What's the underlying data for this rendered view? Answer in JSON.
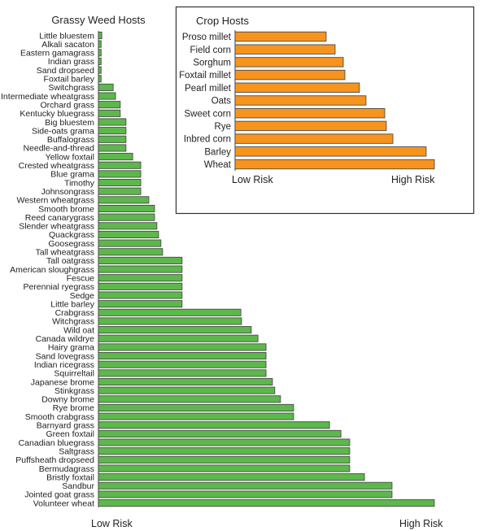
{
  "chart_data": [
    {
      "type": "bar",
      "orientation": "horizontal",
      "title": "Grassy Weed Hosts",
      "xlabel_low": "Low Risk",
      "xlabel_high": "High Risk",
      "xlim": [
        0,
        100
      ],
      "units": "relative risk (0 = lowest, 100 = highest, estimated from bar lengths)",
      "color": "#5cb84a",
      "categories": [
        "Little bluestem",
        "Alkali sacaton",
        "Eastern gamagrass",
        "Indian grass",
        "Sand dropseed",
        "Foxtail barley",
        "Switchgrass",
        "Intermediate wheatgrass",
        "Orchard grass",
        "Kentucky bluegrass",
        "Big bluestem",
        "Side-oats grama",
        "Buffalograss",
        "Needle-and-thread",
        "Yellow foxtail",
        "Crested wheatgrass",
        "Blue grama",
        "Timothy",
        "Johnsongrass",
        "Western wheatgrass",
        "Smooth brome",
        "Reed canarygrass",
        "Slender wheatgrass",
        "Quackgrass",
        "Goosegrass",
        "Tall wheatgrass",
        "Tall oatgrass",
        "American sloughgrass",
        "Fescue",
        "Perennial ryegrass",
        "Sedge",
        "Little barley",
        "Crabgrass",
        "Witchgrass",
        "Wild oat",
        "Canada wildrye",
        "Hairy grama",
        "Sand lovegrass",
        "Indian ricegrass",
        "Squirreltail",
        "Japanese brome",
        "Stinkgrass",
        "Downy brome",
        "Rye brome",
        "Smooth crabgrass",
        "Barnyard grass",
        "Green foxtail",
        "Canadian bluegrass",
        "Saltgrass",
        "Puffsheath dropseed",
        "Bermudagrass",
        "Bristly foxtail",
        "Sandbur",
        "Jointed goat grass",
        "Volunteer wheat"
      ],
      "values": [
        1,
        0.8,
        0.8,
        0.8,
        0.8,
        0.8,
        4.4,
        5.1,
        6.5,
        6.5,
        8.2,
        8.2,
        8.2,
        8.2,
        10.2,
        12.6,
        12.6,
        12.6,
        12.6,
        15.0,
        16.7,
        16.7,
        17.4,
        17.9,
        18.6,
        19.1,
        24.9,
        24.9,
        24.9,
        24.9,
        24.9,
        24.9,
        42.4,
        42.6,
        45.5,
        47.5,
        49.9,
        49.9,
        49.9,
        49.9,
        51.8,
        52.5,
        54.2,
        58.1,
        58.1,
        68.8,
        72.2,
        74.8,
        74.8,
        74.8,
        74.8,
        79.2,
        87.4,
        87.4,
        100
      ]
    },
    {
      "type": "bar",
      "orientation": "horizontal",
      "title": "Crop Hosts",
      "xlabel_low": "Low Risk",
      "xlabel_high": "High Risk",
      "xlim": [
        0,
        100
      ],
      "units": "relative risk (estimated from bar lengths)",
      "color": "#f7941d",
      "categories": [
        "Proso millet",
        "Field corn",
        "Sorghum",
        "Foxtail millet",
        "Pearl millet",
        "Oats",
        "Sweet corn",
        "Rye",
        "Inbred corn",
        "Barley",
        "Wheat"
      ],
      "values": [
        45.7,
        50.2,
        54.3,
        55.1,
        62.4,
        65.7,
        75.1,
        75.9,
        79.2,
        95.9,
        100
      ]
    }
  ],
  "colors": {
    "weed_bar": "#5cb84a",
    "crop_bar": "#f7941d",
    "bar_outline": "#4a4a4a",
    "text": "#222222",
    "inset_border": "#333333"
  }
}
